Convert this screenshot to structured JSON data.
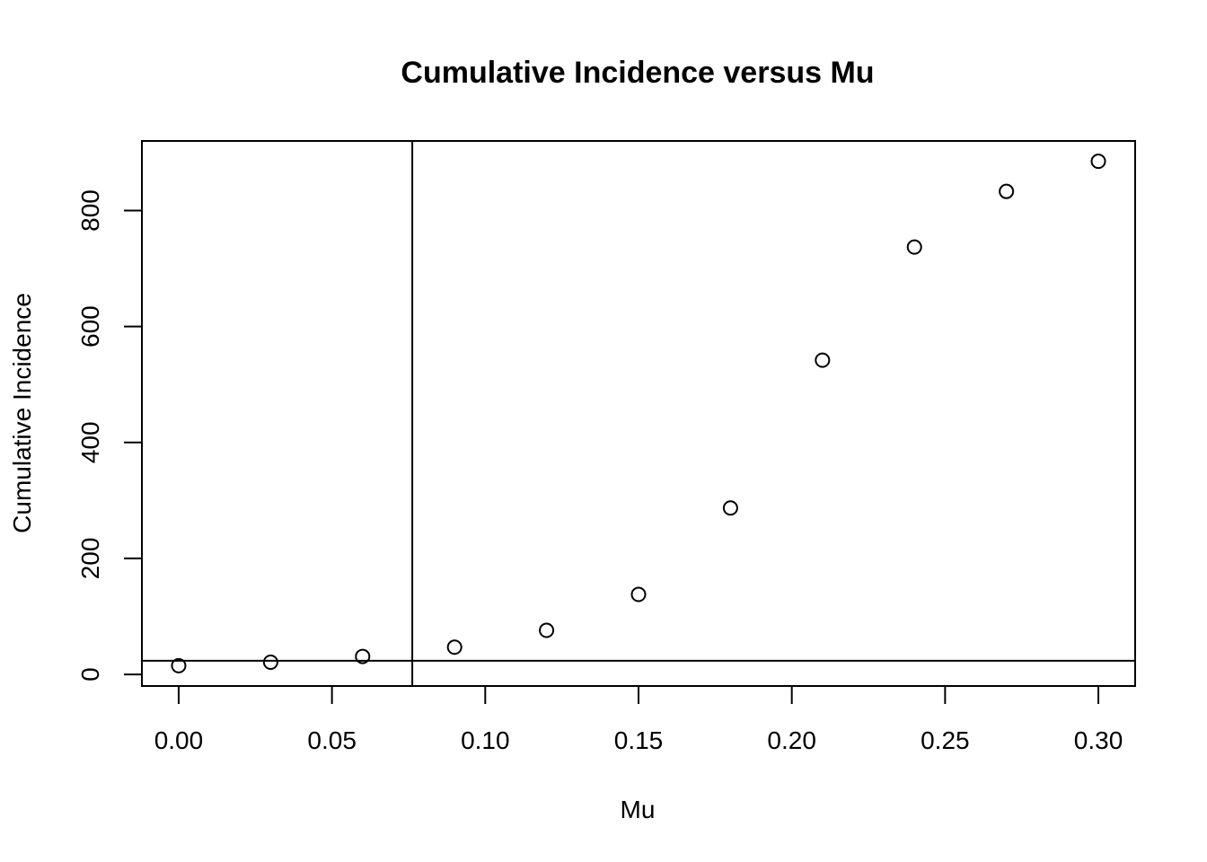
{
  "chart_data": {
    "type": "scatter",
    "title": "Cumulative Incidence versus Mu",
    "xlabel": "Mu",
    "ylabel": "Cumulative Incidence",
    "x": [
      0.0,
      0.03,
      0.06,
      0.09,
      0.12,
      0.15,
      0.18,
      0.21,
      0.24,
      0.27,
      0.3
    ],
    "y": [
      15,
      21,
      31,
      47,
      76,
      138,
      287,
      542,
      737,
      833,
      885
    ],
    "xlim": [
      -0.012,
      0.312
    ],
    "ylim": [
      -20,
      920
    ],
    "x_ticks": [
      0.0,
      0.05,
      0.1,
      0.15,
      0.2,
      0.25,
      0.3
    ],
    "x_tick_labels": [
      "0.00",
      "0.05",
      "0.10",
      "0.15",
      "0.20",
      "0.25",
      "0.30"
    ],
    "y_ticks": [
      0,
      200,
      400,
      600,
      800
    ],
    "y_tick_labels": [
      "0",
      "200",
      "400",
      "600",
      "800"
    ],
    "reference_lines": {
      "vertical_x": 0.0762,
      "horizontal_y": 23.5
    },
    "marker": "open-circle",
    "grid": false,
    "legend": "none"
  }
}
